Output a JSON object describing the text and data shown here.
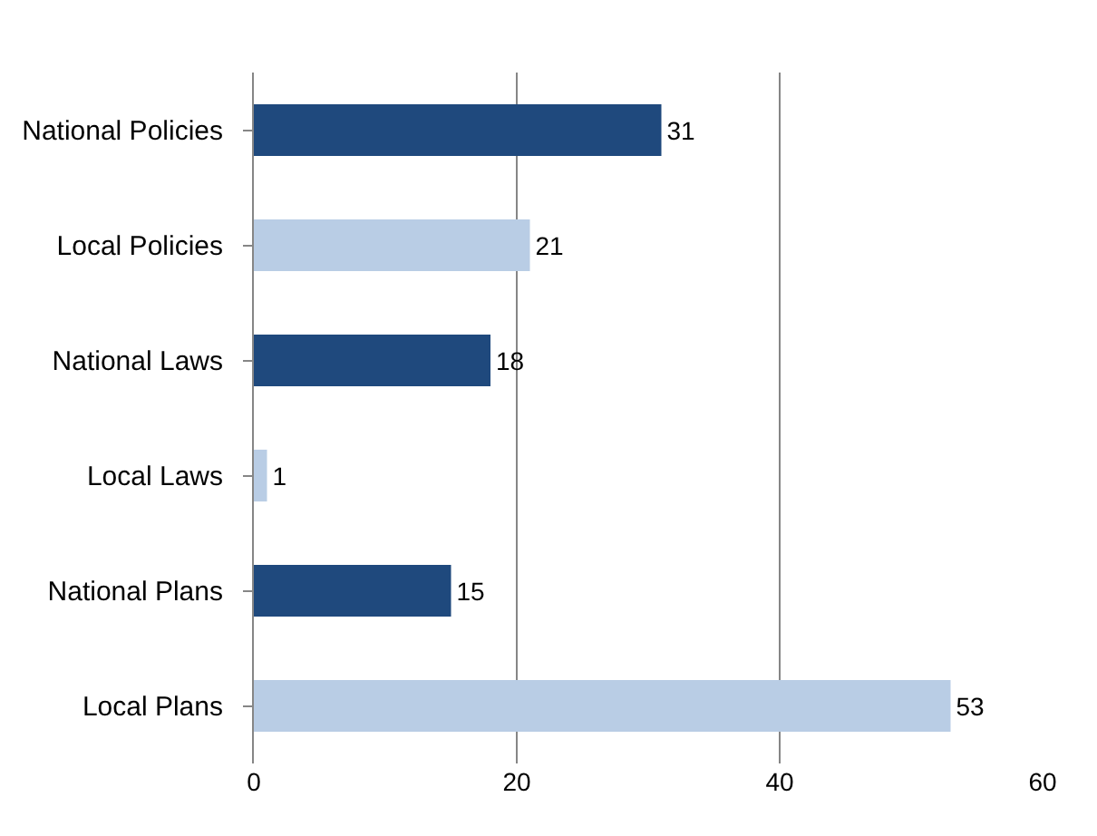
{
  "chart_data": {
    "type": "bar",
    "orientation": "horizontal",
    "categories": [
      "National Policies",
      "Local Policies",
      "National Laws",
      "Local Laws",
      "National Plans",
      "Local Plans"
    ],
    "values": [
      31,
      21,
      18,
      1,
      15,
      53
    ],
    "colors": [
      "#1f497d",
      "#b9cde5",
      "#1f497d",
      "#b9cde5",
      "#1f497d",
      "#b9cde5"
    ],
    "xlim": [
      0,
      60
    ],
    "xticks": [
      0,
      20,
      40,
      60
    ],
    "grid": "x",
    "data_labels": true,
    "legend": false
  }
}
